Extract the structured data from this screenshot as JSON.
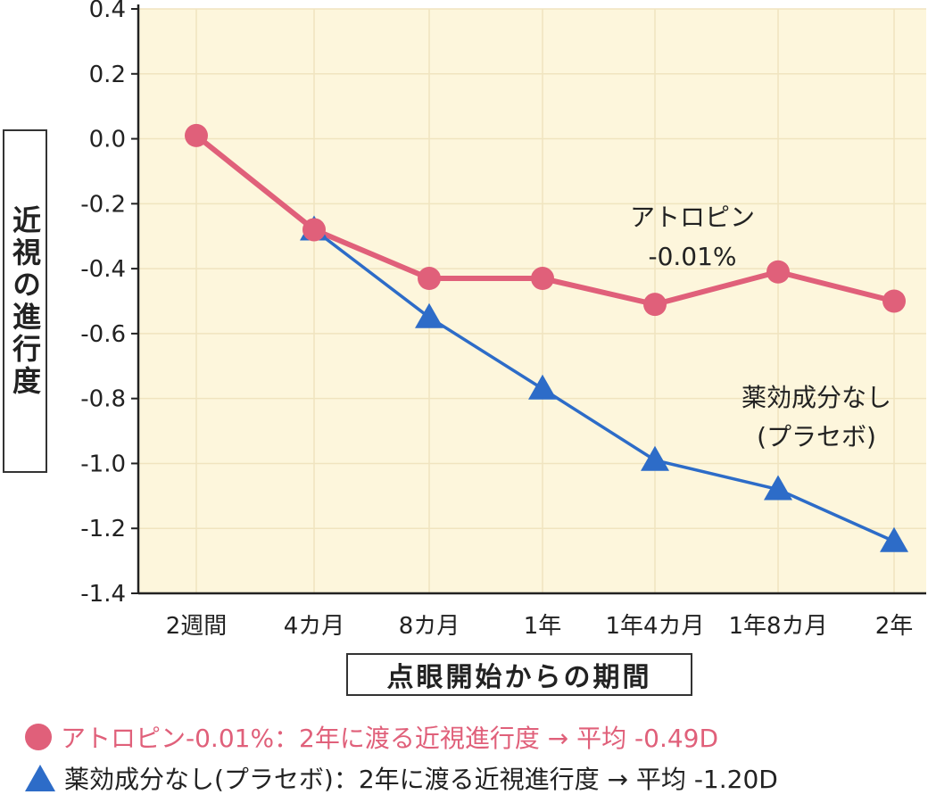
{
  "chart_data": {
    "type": "line",
    "categories": [
      "2週間",
      "4カ月",
      "8カ月",
      "1年",
      "1年4カ月",
      "1年8カ月",
      "2年"
    ],
    "ylabel": "近視の進行度",
    "xlabel": "点眼開始からの期間",
    "ylim": [
      -1.4,
      0.4
    ],
    "yticks": [
      "0.4",
      "0.2",
      "0.0",
      "-0.2",
      "-0.4",
      "-0.6",
      "-0.8",
      "-1.0",
      "-1.2",
      "-1.4"
    ],
    "series": [
      {
        "name": "アトロピン-0.01%",
        "color": "#e0607a",
        "marker": "circle",
        "values": [
          0.01,
          -0.28,
          -0.43,
          -0.43,
          -0.51,
          -0.41,
          -0.5
        ]
      },
      {
        "name": "薬効成分なし(プラセボ)",
        "color": "#2d6cc8",
        "marker": "triangle",
        "values": [
          null,
          -0.28,
          -0.55,
          -0.77,
          -0.99,
          -1.08,
          -1.24
        ]
      }
    ],
    "annotations": [
      {
        "lines": [
          "アトロピン",
          "-0.01%"
        ],
        "series": 0
      },
      {
        "lines": [
          "薬効成分なし",
          "(プラセボ)"
        ],
        "series": 1
      }
    ],
    "plot_background": "#fdf6dc",
    "legend": [
      {
        "text": "アトロピン-0.01%：2年に渡る近視進行度 → 平均 -0.49D",
        "color": "#e0607a",
        "marker": "circle"
      },
      {
        "text": "薬効成分なし(プラセボ)：2年に渡る近視進行度 → 平均 -1.20D",
        "color": "#222222",
        "marker": "triangle"
      }
    ]
  }
}
